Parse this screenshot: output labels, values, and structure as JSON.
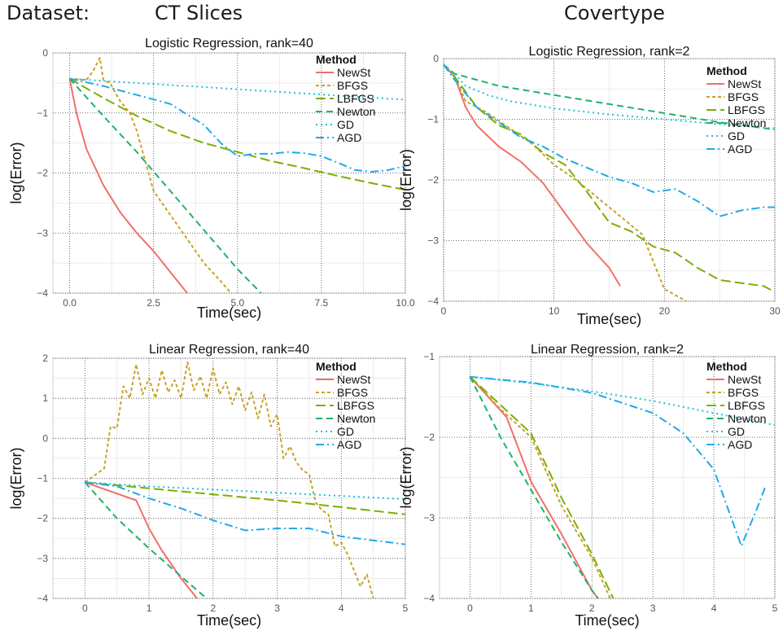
{
  "header": {
    "dataset_label": "Dataset:",
    "left_dataset": "CT Slices",
    "right_dataset": "Covertype"
  },
  "legend": {
    "title": "Method",
    "methods": [
      {
        "name": "NewSt",
        "color": "#f0706a",
        "dash": "solid"
      },
      {
        "name": "BFGS",
        "color": "#c9a226",
        "dash": "short-dash"
      },
      {
        "name": "LBFGS",
        "color": "#7cae00",
        "dash": "long-dash"
      },
      {
        "name": "Newton",
        "color": "#1fb26b",
        "dash": "dash"
      },
      {
        "name": "GD",
        "color": "#1fbfd6",
        "dash": "dotted"
      },
      {
        "name": "AGD",
        "color": "#21a9e8",
        "dash": "dash-dot"
      }
    ]
  },
  "chart_data": [
    {
      "type": "line",
      "title": "Logistic Regression, rank=40",
      "xlabel": "Time(sec)",
      "ylabel": "log(Error)",
      "xlim": [
        -0.5,
        10
      ],
      "ylim": [
        -4,
        0
      ],
      "xticks": [
        0,
        2.5,
        5,
        7.5,
        10
      ],
      "xtick_labels": [
        "0.0",
        "2.5",
        "5.0",
        "7.5",
        "10.0"
      ],
      "yticks": [
        -4,
        -3,
        -2,
        -1,
        0
      ],
      "ytick_labels": [
        "−4",
        "−3",
        "−2",
        "−1",
        "0"
      ],
      "grid": true,
      "legend_position": "top-right",
      "series": [
        {
          "name": "NewSt",
          "x": [
            0,
            0.2,
            0.5,
            1.0,
            1.5,
            2.0,
            2.5,
            3.0,
            3.5
          ],
          "y": [
            -0.43,
            -1.0,
            -1.6,
            -2.2,
            -2.65,
            -3.0,
            -3.3,
            -3.65,
            -4.0
          ]
        },
        {
          "name": "BFGS",
          "x": [
            0,
            0.5,
            0.7,
            0.9,
            1.0,
            1.2,
            1.5,
            1.8,
            2.0,
            2.3,
            2.5,
            3.0,
            3.5,
            4.0,
            4.5,
            4.8
          ],
          "y": [
            -0.43,
            -0.45,
            -0.3,
            -0.08,
            -0.45,
            -0.5,
            -0.8,
            -1.0,
            -1.3,
            -1.9,
            -2.3,
            -2.7,
            -3.1,
            -3.5,
            -3.8,
            -4.0
          ]
        },
        {
          "name": "LBFGS",
          "x": [
            0,
            1,
            2,
            3,
            4,
            5,
            6,
            7,
            8,
            9,
            10
          ],
          "y": [
            -0.43,
            -0.75,
            -1.05,
            -1.3,
            -1.5,
            -1.65,
            -1.8,
            -1.92,
            -2.05,
            -2.17,
            -2.28
          ]
        },
        {
          "name": "Newton",
          "x": [
            0,
            1,
            2,
            3,
            4,
            5,
            5.7
          ],
          "y": [
            -0.43,
            -1.05,
            -1.65,
            -2.3,
            -2.95,
            -3.6,
            -4.0
          ]
        },
        {
          "name": "GD",
          "x": [
            0,
            2,
            4,
            6,
            8,
            10
          ],
          "y": [
            -0.43,
            -0.5,
            -0.57,
            -0.64,
            -0.71,
            -0.78
          ]
        },
        {
          "name": "AGD",
          "x": [
            0,
            1,
            2,
            3,
            4,
            4.5,
            5,
            5.5,
            6,
            6.5,
            7,
            7.5,
            8,
            8.5,
            9,
            9.5,
            10
          ],
          "y": [
            -0.43,
            -0.55,
            -0.7,
            -0.85,
            -1.2,
            -1.5,
            -1.72,
            -1.68,
            -1.68,
            -1.65,
            -1.67,
            -1.72,
            -1.83,
            -1.95,
            -1.98,
            -1.95,
            -1.88
          ]
        }
      ]
    },
    {
      "type": "line",
      "title": "Logistic Regression, rank=2",
      "xlabel": "Time(sec)",
      "ylabel": "log(Error)",
      "xlim": [
        0,
        30
      ],
      "ylim": [
        -4,
        0
      ],
      "xticks": [
        0,
        10,
        20,
        30
      ],
      "xtick_labels": [
        "0",
        "10",
        "20",
        "30"
      ],
      "yticks": [
        -4,
        -3,
        -2,
        -1,
        0
      ],
      "ytick_labels": [
        "−4",
        "−3",
        "−2",
        "−1",
        "0"
      ],
      "grid": true,
      "legend_position": "top-right",
      "series": [
        {
          "name": "NewSt",
          "x": [
            0,
            1,
            2,
            3,
            5,
            7,
            9,
            11,
            13,
            15,
            16
          ],
          "y": [
            -0.1,
            -0.3,
            -0.8,
            -1.1,
            -1.45,
            -1.7,
            -2.05,
            -2.55,
            -3.05,
            -3.45,
            -3.75
          ]
        },
        {
          "name": "BFGS",
          "x": [
            0,
            1,
            2,
            4,
            6,
            8,
            10,
            12,
            14,
            16,
            18,
            20,
            22
          ],
          "y": [
            -0.1,
            -0.3,
            -0.7,
            -0.9,
            -1.15,
            -1.4,
            -1.75,
            -2.0,
            -2.3,
            -2.6,
            -2.9,
            -3.8,
            -4.0
          ]
        },
        {
          "name": "LBFGS",
          "x": [
            0,
            1,
            3,
            5,
            7,
            9,
            11,
            13,
            15,
            17,
            19,
            21,
            23,
            25,
            27,
            29,
            30
          ],
          "y": [
            -0.1,
            -0.3,
            -0.8,
            -1.1,
            -1.25,
            -1.55,
            -1.75,
            -2.2,
            -2.7,
            -2.85,
            -3.1,
            -3.2,
            -3.45,
            -3.65,
            -3.7,
            -3.75,
            -3.85
          ]
        },
        {
          "name": "Newton",
          "x": [
            0,
            1,
            5,
            10,
            15,
            20,
            25,
            30
          ],
          "y": [
            -0.1,
            -0.25,
            -0.45,
            -0.6,
            -0.75,
            -0.9,
            -1.05,
            -1.17
          ]
        },
        {
          "name": "GD",
          "x": [
            0,
            1,
            2,
            4,
            6,
            10,
            15,
            20,
            25,
            30
          ],
          "y": [
            -0.1,
            -0.25,
            -0.45,
            -0.6,
            -0.7,
            -0.82,
            -0.92,
            -1.0,
            -1.08,
            -1.15
          ]
        },
        {
          "name": "AGD",
          "x": [
            0,
            1,
            3,
            5,
            7,
            9,
            11,
            13,
            15,
            17,
            19,
            21,
            23,
            25,
            27,
            29,
            30
          ],
          "y": [
            -0.1,
            -0.35,
            -0.8,
            -1.05,
            -1.3,
            -1.45,
            -1.65,
            -1.8,
            -1.95,
            -2.05,
            -2.2,
            -2.15,
            -2.35,
            -2.6,
            -2.5,
            -2.45,
            -2.45
          ]
        }
      ]
    },
    {
      "type": "line",
      "title": "Linear Regression, rank=40",
      "xlabel": "Time(sec)",
      "ylabel": "log(Error)",
      "xlim": [
        -0.5,
        5
      ],
      "ylim": [
        -4,
        2
      ],
      "xticks": [
        0,
        1,
        2,
        3,
        4,
        5
      ],
      "xtick_labels": [
        "0",
        "1",
        "2",
        "3",
        "4",
        "5"
      ],
      "yticks": [
        -4,
        -3,
        -2,
        -1,
        0,
        1,
        2
      ],
      "ytick_labels": [
        "−4",
        "−3",
        "−2",
        "−1",
        "0",
        "1",
        "2"
      ],
      "grid": true,
      "legend_position": "top-right",
      "series": [
        {
          "name": "NewSt",
          "x": [
            0,
            0.8,
            1.0,
            1.2,
            1.5,
            1.75
          ],
          "y": [
            -1.1,
            -1.55,
            -2.25,
            -2.8,
            -3.5,
            -4.0
          ]
        },
        {
          "name": "BFGS",
          "x": [
            0,
            0.3,
            0.4,
            0.5,
            0.6,
            0.7,
            0.8,
            0.9,
            1.0,
            1.1,
            1.2,
            1.3,
            1.4,
            1.5,
            1.6,
            1.7,
            1.8,
            1.9,
            2.0,
            2.1,
            2.2,
            2.3,
            2.4,
            2.5,
            2.6,
            2.7,
            2.8,
            2.9,
            3.0,
            3.1,
            3.2,
            3.3,
            3.4,
            3.5,
            3.6,
            3.7,
            3.8,
            3.9,
            4.0,
            4.1,
            4.2,
            4.3,
            4.4,
            4.5
          ],
          "y": [
            -1.1,
            -0.75,
            0.3,
            0.25,
            1.3,
            1.0,
            1.85,
            1.1,
            1.5,
            1.0,
            1.7,
            1.15,
            1.45,
            1.0,
            1.9,
            1.2,
            1.55,
            1.0,
            1.75,
            1.1,
            1.4,
            0.85,
            1.3,
            0.7,
            1.15,
            0.5,
            1.1,
            0.3,
            0.6,
            -0.5,
            -0.2,
            -0.6,
            -0.8,
            -0.9,
            -1.6,
            -1.8,
            -1.9,
            -2.7,
            -2.6,
            -2.9,
            -3.3,
            -3.7,
            -3.4,
            -4.0
          ]
        },
        {
          "name": "LBFGS",
          "x": [
            0,
            1,
            2,
            3,
            4,
            5
          ],
          "y": [
            -1.1,
            -1.25,
            -1.4,
            -1.55,
            -1.72,
            -1.9
          ]
        },
        {
          "name": "Newton",
          "x": [
            0,
            0.5,
            1.0,
            1.5,
            1.9
          ],
          "y": [
            -1.1,
            -2.0,
            -2.75,
            -3.45,
            -4.0
          ]
        },
        {
          "name": "GD",
          "x": [
            0,
            1,
            2,
            3,
            4,
            5
          ],
          "y": [
            -1.1,
            -1.2,
            -1.28,
            -1.36,
            -1.44,
            -1.52
          ]
        },
        {
          "name": "AGD",
          "x": [
            0,
            0.5,
            1.0,
            1.5,
            2.0,
            2.5,
            3.0,
            3.5,
            4.0,
            4.5,
            5.0
          ],
          "y": [
            -1.1,
            -1.2,
            -1.5,
            -1.75,
            -2.05,
            -2.3,
            -2.25,
            -2.25,
            -2.45,
            -2.55,
            -2.65
          ]
        }
      ]
    },
    {
      "type": "line",
      "title": "Linear Regression, rank=2",
      "xlabel": "Time(sec)",
      "ylabel": "log(Error)",
      "xlim": [
        -0.5,
        5
      ],
      "ylim": [
        -4,
        -1
      ],
      "xticks": [
        0,
        1,
        2,
        3,
        4,
        5
      ],
      "xtick_labels": [
        "0",
        "1",
        "2",
        "3",
        "4",
        "5"
      ],
      "yticks": [
        -4,
        -3,
        -2,
        -1
      ],
      "ytick_labels": [
        "−4",
        "−3",
        "−2",
        "−1"
      ],
      "grid": true,
      "legend_position": "top-right",
      "series": [
        {
          "name": "NewSt",
          "x": [
            0,
            0.6,
            1.0,
            1.5,
            2.0,
            2.1
          ],
          "y": [
            -1.25,
            -1.75,
            -2.55,
            -3.2,
            -3.9,
            -4.0
          ]
        },
        {
          "name": "BFGS",
          "x": [
            0,
            0.5,
            1.0,
            1.5,
            2.0,
            2.3
          ],
          "y": [
            -1.25,
            -1.65,
            -2.0,
            -2.85,
            -3.5,
            -4.0
          ]
        },
        {
          "name": "LBFGS",
          "x": [
            0,
            0.5,
            1.0,
            1.5,
            2.0,
            2.35
          ],
          "y": [
            -1.25,
            -1.6,
            -1.95,
            -2.75,
            -3.45,
            -4.0
          ]
        },
        {
          "name": "Newton",
          "x": [
            0,
            0.5,
            1.0,
            1.5,
            2.0,
            2.1
          ],
          "y": [
            -1.25,
            -2.0,
            -2.65,
            -3.3,
            -3.9,
            -4.0
          ]
        },
        {
          "name": "GD",
          "x": [
            0,
            1,
            2,
            3,
            4,
            5
          ],
          "y": [
            -1.25,
            -1.33,
            -1.43,
            -1.55,
            -1.7,
            -1.85
          ]
        },
        {
          "name": "AGD",
          "x": [
            0,
            1,
            2,
            3,
            3.5,
            4.0,
            4.45,
            4.7,
            4.85
          ],
          "y": [
            -1.25,
            -1.32,
            -1.45,
            -1.7,
            -1.95,
            -2.4,
            -3.35,
            -2.9,
            -2.6
          ]
        }
      ]
    }
  ]
}
